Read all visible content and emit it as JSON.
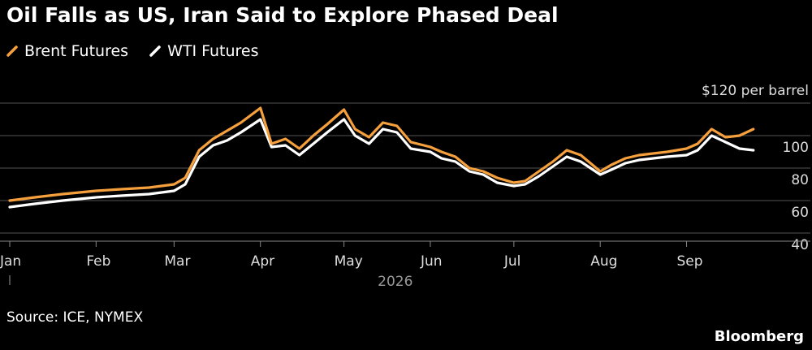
{
  "title": "Oil Falls as US, Iran Said to Explore Phased Deal",
  "source": "Source: ICE, NYMEX",
  "brand": "Bloomberg",
  "colors": {
    "brent": "#f6a03d",
    "wti": "#ffffff",
    "grid": "#555555",
    "axis_text": "#dddddd",
    "year_text": "#999999"
  },
  "chart_data": {
    "type": "line",
    "unit_label": "$120 per barrel",
    "year_label": "2026",
    "ylim": [
      35,
      125
    ],
    "yticks": [
      120,
      100,
      80,
      60,
      40
    ],
    "ytick_labels": [
      "",
      "100",
      "80",
      "60",
      "40"
    ],
    "grid": true,
    "legend_position": "top-left",
    "month_labels": [
      "Jan",
      "Feb",
      "Mar",
      "Apr",
      "May",
      "Jun",
      "Jul",
      "Aug",
      "Sep"
    ],
    "month_starts": [
      "2026-01-01",
      "2026-02-01",
      "2026-03-01",
      "2026-04-01",
      "2026-05-01",
      "2026-06-01",
      "2026-07-01",
      "2026-08-01",
      "2026-09-01"
    ],
    "x_range": [
      "2026-01-01",
      "2026-09-30"
    ],
    "series": [
      {
        "name": "Brent Futures",
        "color": "#f6a03d",
        "x": [
          "2026-01-01",
          "2026-01-10",
          "2026-01-20",
          "2026-02-01",
          "2026-02-10",
          "2026-02-20",
          "2026-03-01",
          "2026-03-05",
          "2026-03-10",
          "2026-03-15",
          "2026-03-20",
          "2026-03-25",
          "2026-04-01",
          "2026-04-05",
          "2026-04-10",
          "2026-04-15",
          "2026-04-20",
          "2026-04-25",
          "2026-05-01",
          "2026-05-05",
          "2026-05-10",
          "2026-05-15",
          "2026-05-20",
          "2026-05-25",
          "2026-06-01",
          "2026-06-05",
          "2026-06-10",
          "2026-06-15",
          "2026-06-20",
          "2026-06-25",
          "2026-07-01",
          "2026-07-05",
          "2026-07-10",
          "2026-07-15",
          "2026-07-20",
          "2026-07-25",
          "2026-08-01",
          "2026-08-05",
          "2026-08-10",
          "2026-08-15",
          "2026-08-20",
          "2026-08-25",
          "2026-09-01",
          "2026-09-05",
          "2026-09-10",
          "2026-09-15",
          "2026-09-20",
          "2026-09-25"
        ],
        "values": [
          60,
          62,
          64,
          66,
          67,
          68,
          70,
          74,
          91,
          98,
          103,
          108,
          117,
          95,
          98,
          92,
          100,
          107,
          116,
          104,
          99,
          108,
          106,
          96,
          93,
          90,
          87,
          80,
          78,
          74,
          71,
          72,
          78,
          84,
          91,
          88,
          78,
          82,
          86,
          88,
          89,
          90,
          92,
          95,
          104,
          99,
          100,
          104
        ]
      },
      {
        "name": "WTI Futures",
        "color": "#ffffff",
        "x": [
          "2026-01-01",
          "2026-01-10",
          "2026-01-20",
          "2026-02-01",
          "2026-02-10",
          "2026-02-20",
          "2026-03-01",
          "2026-03-05",
          "2026-03-10",
          "2026-03-15",
          "2026-03-20",
          "2026-03-25",
          "2026-04-01",
          "2026-04-05",
          "2026-04-10",
          "2026-04-15",
          "2026-04-20",
          "2026-04-25",
          "2026-05-01",
          "2026-05-05",
          "2026-05-10",
          "2026-05-15",
          "2026-05-20",
          "2026-05-25",
          "2026-06-01",
          "2026-06-05",
          "2026-06-10",
          "2026-06-15",
          "2026-06-20",
          "2026-06-25",
          "2026-07-01",
          "2026-07-05",
          "2026-07-10",
          "2026-07-15",
          "2026-07-20",
          "2026-07-25",
          "2026-08-01",
          "2026-08-05",
          "2026-08-10",
          "2026-08-15",
          "2026-08-20",
          "2026-08-25",
          "2026-09-01",
          "2026-09-05",
          "2026-09-10",
          "2026-09-15",
          "2026-09-20",
          "2026-09-25"
        ],
        "values": [
          56,
          58,
          60,
          62,
          63,
          64,
          66,
          70,
          87,
          94,
          97,
          102,
          110,
          93,
          94,
          88,
          95,
          102,
          110,
          100,
          95,
          104,
          102,
          92,
          90,
          86,
          84,
          78,
          76,
          71,
          69,
          70,
          75,
          81,
          87,
          84,
          76,
          79,
          83,
          85,
          86,
          87,
          88,
          91,
          100,
          96,
          92,
          91
        ]
      }
    ]
  }
}
